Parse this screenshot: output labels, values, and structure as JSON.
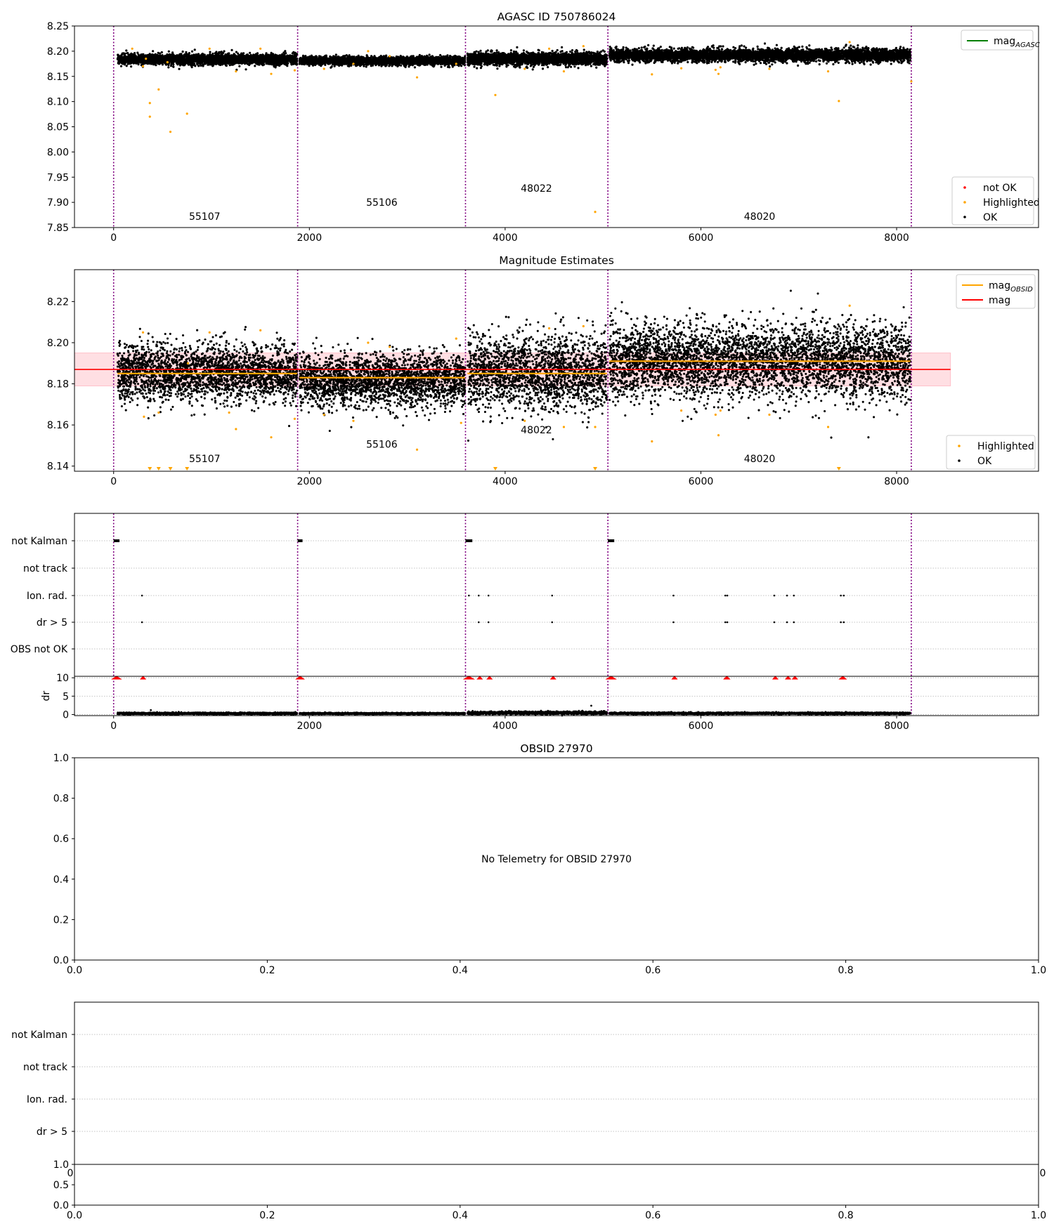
{
  "figure": {
    "bg": "#ffffff"
  },
  "chart_data": [
    {
      "type": "scatter",
      "id": "agasc",
      "title": "AGASC ID 750786024",
      "xlim": [
        -400,
        9450
      ],
      "ylim": [
        7.85,
        8.25
      ],
      "xticks": [
        0,
        2000,
        4000,
        6000,
        8000
      ],
      "xtick_labels": [
        "0",
        "2000",
        "4000",
        "6000",
        "8000"
      ],
      "yticks": [
        7.85,
        7.9,
        7.95,
        8.0,
        8.05,
        8.1,
        8.15,
        8.2,
        8.25
      ],
      "ytick_labels": [
        "7.85",
        "7.90",
        "7.95",
        "8.00",
        "8.05",
        "8.10",
        "8.15",
        "8.20",
        "8.25"
      ],
      "obs_boundaries": [
        0,
        1880,
        3595,
        5050,
        8150
      ],
      "obs_labels": [
        {
          "text": "55107",
          "x": 930,
          "y": 7.865
        },
        {
          "text": "55106",
          "x": 2740,
          "y": 7.893
        },
        {
          "text": "48022",
          "x": 4320,
          "y": 7.921
        },
        {
          "text": "48020",
          "x": 6600,
          "y": 7.865
        }
      ],
      "ok_segments": [
        {
          "x0": 40,
          "x1": 1875,
          "mean": 8.184,
          "sd": 0.005
        },
        {
          "x0": 1900,
          "x1": 3590,
          "mean": 8.181,
          "sd": 0.004
        },
        {
          "x0": 3615,
          "x1": 5040,
          "mean": 8.185,
          "sd": 0.006
        },
        {
          "x0": 5065,
          "x1": 8140,
          "mean": 8.192,
          "sd": 0.006
        }
      ],
      "highlighted": [
        [
          330,
          8.185
        ],
        [
          370,
          8.097
        ],
        [
          370,
          8.07
        ],
        [
          460,
          8.124
        ],
        [
          550,
          8.178
        ],
        [
          580,
          8.04
        ],
        [
          750,
          8.076
        ],
        [
          190,
          8.205
        ],
        [
          300,
          8.17
        ],
        [
          980,
          8.205
        ],
        [
          1250,
          8.16
        ],
        [
          1500,
          8.205
        ],
        [
          1610,
          8.155
        ],
        [
          1850,
          8.162
        ],
        [
          2150,
          8.165
        ],
        [
          2450,
          8.175
        ],
        [
          2600,
          8.2
        ],
        [
          2820,
          8.19
        ],
        [
          3100,
          8.148
        ],
        [
          3500,
          8.175
        ],
        [
          3900,
          8.113
        ],
        [
          4200,
          8.165
        ],
        [
          4450,
          8.205
        ],
        [
          4600,
          8.16
        ],
        [
          4800,
          8.21
        ],
        [
          4920,
          7.881
        ],
        [
          5500,
          8.154
        ],
        [
          5800,
          8.166
        ],
        [
          6150,
          8.163
        ],
        [
          6180,
          8.155
        ],
        [
          6200,
          8.168
        ],
        [
          6700,
          8.165
        ],
        [
          7300,
          8.16
        ],
        [
          7410,
          8.101
        ],
        [
          7520,
          8.218
        ],
        [
          8150,
          8.14
        ]
      ],
      "series": [
        {
          "name": "mag",
          "sub": "AGASC",
          "color": "#008000",
          "kind": "line"
        },
        {
          "name": "not OK",
          "color": "#ff0000",
          "kind": "point"
        },
        {
          "name": "Highlighted",
          "color": "#ffa500",
          "kind": "point"
        },
        {
          "name": "OK",
          "color": "#000000",
          "kind": "point"
        }
      ],
      "legends": {
        "upper": "top-right",
        "lower": "bottom-right"
      }
    },
    {
      "type": "scatter",
      "id": "estimates",
      "title": "Magnitude Estimates",
      "xlim": [
        -400,
        9450
      ],
      "ylim": [
        8.1375,
        8.2355
      ],
      "xticks": [
        0,
        2000,
        4000,
        6000,
        8000
      ],
      "xtick_labels": [
        "0",
        "2000",
        "4000",
        "6000",
        "8000"
      ],
      "yticks": [
        8.14,
        8.16,
        8.18,
        8.2,
        8.22
      ],
      "ytick_labels": [
        "8.14",
        "8.16",
        "8.18",
        "8.20",
        "8.22"
      ],
      "obs_boundaries": [
        0,
        1880,
        3595,
        5050,
        8150
      ],
      "obs_labels": [
        {
          "text": "55107",
          "x": 930,
          "y": 8.142
        },
        {
          "text": "55106",
          "x": 2740,
          "y": 8.149
        },
        {
          "text": "48022",
          "x": 4320,
          "y": 8.156
        },
        {
          "text": "48020",
          "x": 6600,
          "y": 8.142
        }
      ],
      "mag": {
        "value": 8.187,
        "band": [
          8.179,
          8.195
        ],
        "x0": -400,
        "x1": 8550,
        "color": "#ff0000",
        "band_color": "#ffc0c8"
      },
      "mag_obsid": [
        {
          "x0": 40,
          "x1": 1875,
          "value": 8.185
        },
        {
          "x0": 1900,
          "x1": 3590,
          "value": 8.183
        },
        {
          "x0": 3615,
          "x1": 5040,
          "value": 8.185
        },
        {
          "x0": 5065,
          "x1": 8140,
          "value": 8.191
        }
      ],
      "ok_segments": [
        {
          "x0": 40,
          "x1": 1875,
          "mean": 8.185,
          "sd": 0.007
        },
        {
          "x0": 1900,
          "x1": 3590,
          "mean": 8.182,
          "sd": 0.0065
        },
        {
          "x0": 3615,
          "x1": 5040,
          "mean": 8.185,
          "sd": 0.009
        },
        {
          "x0": 5065,
          "x1": 8140,
          "mean": 8.191,
          "sd": 0.009
        }
      ],
      "highlighted": [
        [
          300,
          8.205
        ],
        [
          310,
          8.164
        ],
        [
          460,
          8.166
        ],
        [
          760,
          8.19
        ],
        [
          980,
          8.205
        ],
        [
          1180,
          8.166
        ],
        [
          1250,
          8.158
        ],
        [
          1500,
          8.206
        ],
        [
          1610,
          8.154
        ],
        [
          1850,
          8.163
        ],
        [
          2150,
          8.165
        ],
        [
          2450,
          8.162
        ],
        [
          2600,
          8.2
        ],
        [
          2820,
          8.198
        ],
        [
          3100,
          8.148
        ],
        [
          3500,
          8.202
        ],
        [
          3550,
          8.161
        ],
        [
          4200,
          8.162
        ],
        [
          4450,
          8.207
        ],
        [
          4600,
          8.159
        ],
        [
          4800,
          8.208
        ],
        [
          4920,
          8.159
        ],
        [
          5500,
          8.152
        ],
        [
          5800,
          8.167
        ],
        [
          6150,
          8.165
        ],
        [
          6180,
          8.155
        ],
        [
          6200,
          8.167
        ],
        [
          6700,
          8.165
        ],
        [
          7300,
          8.159
        ],
        [
          7520,
          8.218
        ]
      ],
      "clipped_low": [
        370,
        460,
        580,
        750,
        3900,
        4920,
        7410
      ],
      "series": [
        {
          "name": "mag",
          "sub": "OBSID",
          "color": "#ffa500",
          "kind": "line"
        },
        {
          "name": "mag",
          "color": "#ff0000",
          "kind": "line"
        },
        {
          "name": "Highlighted",
          "color": "#ffa500",
          "kind": "point"
        },
        {
          "name": "OK",
          "color": "#000000",
          "kind": "point"
        }
      ],
      "legends": {
        "upper": "top-right",
        "lower": "bottom-right"
      }
    },
    {
      "type": "scatter",
      "id": "flags",
      "xlim": [
        -400,
        9450
      ],
      "xticks": [
        0,
        2000,
        4000,
        6000,
        8000
      ],
      "xtick_labels": [
        "0",
        "2000",
        "4000",
        "6000",
        "8000"
      ],
      "categories": [
        "not Kalman",
        "not track",
        "Ion. rad.",
        "dr > 5",
        "OBS not OK"
      ],
      "obs_boundaries": [
        0,
        1880,
        3595,
        5050,
        8150
      ],
      "not_kalman": [
        [
          0,
          60
        ],
        [
          1880,
          1930
        ],
        [
          3595,
          3665
        ],
        [
          5050,
          5115
        ]
      ],
      "ion_rad": [
        290,
        3630,
        3730,
        3830,
        4480,
        5720,
        6250,
        6270,
        6750,
        6880,
        6950,
        7430,
        7460
      ],
      "dr_gt_5": [
        290,
        3730,
        3830,
        4480,
        5720,
        6250,
        6270,
        6750,
        6880,
        6950,
        7430,
        7460
      ],
      "dr": {
        "ylabel": "dr",
        "ylim": [
          -0.3,
          10.4
        ],
        "yticks": [
          0,
          5,
          10
        ],
        "ytick_labels": [
          "0",
          "5",
          "10"
        ],
        "ok_segments": [
          {
            "x0": 40,
            "x1": 1875,
            "mean": 0.3,
            "sd": 0.12
          },
          {
            "x0": 1900,
            "x1": 3590,
            "mean": 0.28,
            "sd": 0.1
          },
          {
            "x0": 3615,
            "x1": 5040,
            "mean": 0.45,
            "sd": 0.18
          },
          {
            "x0": 5065,
            "x1": 8140,
            "mean": 0.33,
            "sd": 0.12
          }
        ],
        "spikes": [
          [
            380,
            1.2
          ],
          [
            4040,
            1.0
          ],
          [
            4880,
            2.4
          ]
        ],
        "clipped_high": [
          [
            0,
            60
          ],
          [
            1880,
            1930
          ],
          [
            3595,
            3665
          ],
          [
            5050,
            5115
          ],
          [
            290,
            290
          ],
          [
            3730,
            3730
          ],
          [
            3830,
            3830
          ],
          [
            4480,
            4480
          ],
          [
            5720,
            5720
          ],
          [
            6250,
            6280
          ],
          [
            6750,
            6750
          ],
          [
            6880,
            6880
          ],
          [
            6950,
            6950
          ],
          [
            7430,
            7470
          ]
        ]
      }
    },
    {
      "type": "scatter",
      "id": "obsid",
      "title": "OBSID 27970",
      "message": "No Telemetry for OBSID 27970",
      "xlim": [
        0,
        1
      ],
      "ylim": [
        0,
        1
      ],
      "xticks": [
        0,
        0.2,
        0.4,
        0.6,
        0.8,
        1.0
      ],
      "xtick_labels": [
        "0.0",
        "0.2",
        "0.4",
        "0.6",
        "0.8",
        "1.0"
      ],
      "yticks": [
        0,
        0.2,
        0.4,
        0.6,
        0.8,
        1.0
      ],
      "ytick_labels": [
        "0.0",
        "0.2",
        "0.4",
        "0.6",
        "0.8",
        "1.0"
      ]
    },
    {
      "type": "scatter",
      "id": "flags2",
      "categories": [
        "not Kalman",
        "not track",
        "Ion. rad.",
        "dr > 5"
      ],
      "xlim": [
        0,
        1
      ],
      "ylim": [
        0,
        1
      ],
      "xticks": [
        0,
        0.2,
        0.4,
        0.6,
        0.8,
        1.0
      ],
      "xtick_labels": [
        "0.0",
        "0.2",
        "0.4",
        "0.6",
        "0.8",
        "1.0"
      ],
      "yticks": [
        0,
        0.5,
        1.0
      ],
      "ytick_labels": [
        "0.0",
        "0.5",
        "1.0"
      ],
      "hidden_tick_labels": [
        "0",
        "0"
      ]
    }
  ],
  "colors": {
    "ok": "#000000",
    "highlighted": "#ffa500",
    "not_ok": "#ff0000",
    "boundary": "#800080",
    "grid": "#b0b0b0"
  }
}
